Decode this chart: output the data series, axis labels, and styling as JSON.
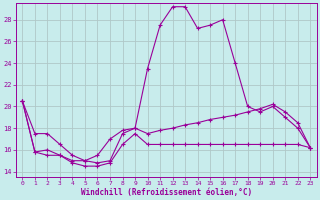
{
  "xlabel": "Windchill (Refroidissement éolien,°C)",
  "bg_color": "#c8ecec",
  "line_color": "#990099",
  "grid_color": "#b0c8c8",
  "xlim": [
    -0.5,
    23.5
  ],
  "ylim": [
    13.5,
    29.5
  ],
  "yticks": [
    14,
    16,
    18,
    20,
    22,
    24,
    26,
    28
  ],
  "xticks": [
    0,
    1,
    2,
    3,
    4,
    5,
    6,
    7,
    8,
    9,
    10,
    11,
    12,
    13,
    14,
    15,
    16,
    17,
    18,
    19,
    20,
    21,
    22,
    23
  ],
  "series1_x": [
    0,
    1,
    2,
    3,
    4,
    5,
    6,
    7,
    8,
    9,
    10,
    11,
    12,
    13,
    14,
    15,
    16,
    17,
    18,
    19,
    20,
    21,
    22,
    23
  ],
  "series1_y": [
    20.5,
    17.5,
    17.5,
    16.5,
    15.5,
    15.0,
    14.8,
    15.0,
    17.5,
    18.0,
    23.5,
    27.5,
    29.2,
    29.2,
    27.2,
    27.5,
    28.0,
    24.0,
    20.0,
    19.5,
    20.0,
    19.0,
    18.0,
    16.2
  ],
  "series2_x": [
    0,
    1,
    2,
    3,
    4,
    5,
    6,
    7,
    8,
    9,
    10,
    11,
    12,
    13,
    14,
    15,
    16,
    17,
    18,
    19,
    20,
    21,
    22,
    23
  ],
  "series2_y": [
    20.5,
    15.8,
    16.0,
    15.5,
    15.0,
    15.0,
    15.5,
    17.0,
    17.8,
    18.0,
    17.5,
    17.8,
    18.0,
    18.3,
    18.5,
    18.8,
    19.0,
    19.2,
    19.5,
    19.8,
    20.2,
    19.5,
    18.5,
    16.2
  ],
  "series3_x": [
    0,
    1,
    2,
    3,
    4,
    5,
    6,
    7,
    8,
    9,
    10,
    11,
    12,
    13,
    14,
    15,
    16,
    17,
    18,
    19,
    20,
    21,
    22,
    23
  ],
  "series3_y": [
    20.5,
    15.8,
    15.5,
    15.5,
    14.8,
    14.5,
    14.5,
    14.8,
    16.5,
    17.5,
    16.5,
    16.5,
    16.5,
    16.5,
    16.5,
    16.5,
    16.5,
    16.5,
    16.5,
    16.5,
    16.5,
    16.5,
    16.5,
    16.2
  ]
}
